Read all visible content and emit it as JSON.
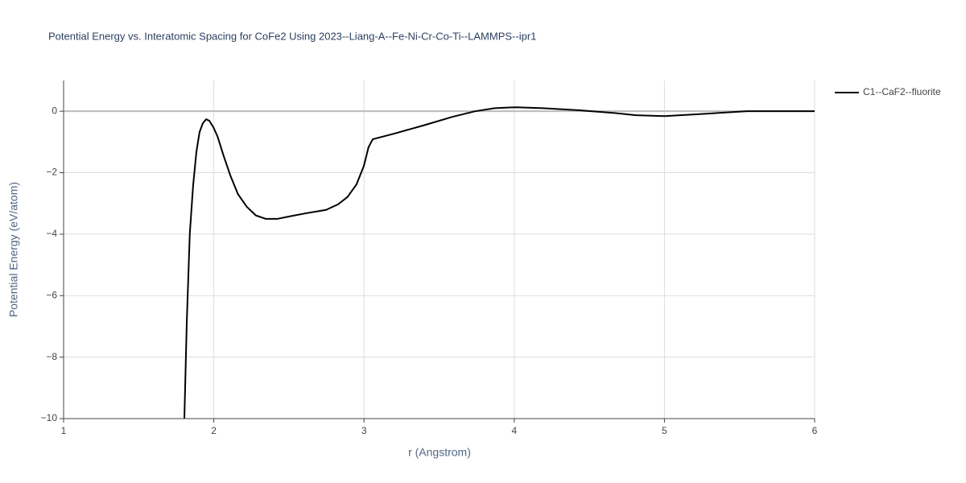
{
  "chart_data": {
    "type": "line",
    "title": "Potential Energy vs. Interatomic Spacing for CoFe2 Using 2023--Liang-A--Fe-Ni-Cr-Co-Ti--LAMMPS--ipr1",
    "x_label": "r (Angstrom)",
    "y_label": "Potential Energy (eV/atom)",
    "xlim": [
      1,
      6
    ],
    "ylim": [
      -10,
      1
    ],
    "xticks": [
      1,
      2,
      3,
      4,
      5,
      6
    ],
    "yticks": [
      {
        "value": -10,
        "label": "−10"
      },
      {
        "value": -8,
        "label": "−8"
      },
      {
        "value": -6,
        "label": "−6"
      },
      {
        "value": -4,
        "label": "−4"
      },
      {
        "value": -2,
        "label": "−2"
      },
      0
    ],
    "grid": true,
    "legend": "right",
    "x": [
      1.804,
      1.82,
      1.84,
      1.862,
      1.884,
      1.905,
      1.927,
      1.949,
      1.97,
      1.997,
      2.024,
      2.066,
      2.11,
      2.16,
      2.22,
      2.28,
      2.345,
      2.425,
      2.506,
      2.613,
      2.747,
      2.827,
      2.89,
      2.95,
      2.999,
      3.03,
      3.058,
      3.2,
      3.39,
      3.59,
      3.74,
      3.87,
      4.01,
      4.19,
      4.435,
      4.65,
      4.81,
      5.0,
      5.21,
      5.55,
      6.0
    ],
    "series": [
      {
        "name": "C1--CaF2--fluorite",
        "color": "#000000",
        "values": [
          -10,
          -6.87,
          -4.0,
          -2.43,
          -1.33,
          -0.68,
          -0.39,
          -0.26,
          -0.31,
          -0.52,
          -0.81,
          -1.46,
          -2.09,
          -2.69,
          -3.11,
          -3.39,
          -3.5,
          -3.5,
          -3.42,
          -3.32,
          -3.21,
          -3.03,
          -2.79,
          -2.38,
          -1.78,
          -1.17,
          -0.91,
          -0.73,
          -0.47,
          -0.18,
          0,
          0.1,
          0.13,
          0.1,
          0.03,
          -0.05,
          -0.13,
          -0.16,
          -0.1,
          0,
          0
        ]
      }
    ]
  }
}
